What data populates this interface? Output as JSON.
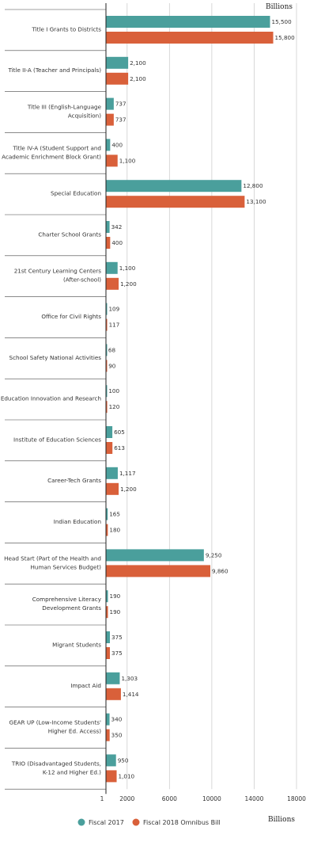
{
  "chart_data": {
    "type": "bar",
    "orientation": "horizontal",
    "unit_top": "Billions",
    "unit_bottom": "Billions",
    "categories": [
      [
        "Title I Grants to Districts"
      ],
      [
        "Title II-A (Teacher and Principals)"
      ],
      [
        "Title III (English-Language",
        "Acquisition)"
      ],
      [
        "Title IV-A (Student Support and",
        "Academic Enrichment Block Grant)"
      ],
      [
        "Special Education"
      ],
      [
        "Charter School Grants"
      ],
      [
        "21st Century Learning Centers",
        "(After-school)"
      ],
      [
        "Office for Civil Rights"
      ],
      [
        "School Safety National Activities"
      ],
      [
        "Education Innovation and Research"
      ],
      [
        "Institute of Education Sciences"
      ],
      [
        "Career-Tech Grants"
      ],
      [
        "Indian Education"
      ],
      [
        "Head Start (Part of the Health and",
        "Human Services Budget)"
      ],
      [
        "Comprehensive Literacy",
        "Development Grants"
      ],
      [
        "Migrant Students"
      ],
      [
        "Impact Aid"
      ],
      [
        "GEAR UP (Low-Income Students'",
        "Higher Ed. Access)"
      ],
      [
        "TRIO (Disadvantaged Students,",
        "K-12 and Higher Ed.)"
      ]
    ],
    "series": [
      {
        "name": "Fiscal 2017",
        "color": "#4a9f9c",
        "values": [
          15500,
          2100,
          737,
          400,
          12800,
          342,
          1100,
          109,
          68,
          100,
          605,
          1117,
          165,
          9250,
          190,
          375,
          1303,
          340,
          950
        ],
        "labels": [
          "15,500",
          "2,100",
          "737",
          "400",
          "12,800",
          "342",
          "1,100",
          "109",
          "68",
          "100",
          "605",
          "1,117",
          "165",
          "9,250",
          "190",
          "375",
          "1,303",
          "340",
          "950"
        ]
      },
      {
        "name": "Fiscal 2018 Omnibus Bill",
        "color": "#d9603a",
        "values": [
          15800,
          2100,
          737,
          1100,
          13100,
          400,
          1200,
          117,
          90,
          120,
          613,
          1200,
          180,
          9860,
          190,
          375,
          1414,
          350,
          1010
        ],
        "labels": [
          "15,800",
          "2,100",
          "737",
          "1,100",
          "13,100",
          "400",
          "1,200",
          "117",
          "90",
          "120",
          "613",
          "1,200",
          "180",
          "9,860",
          "190",
          "375",
          "1,414",
          "350",
          "1,010"
        ]
      }
    ],
    "xticks": [
      1,
      2000,
      6000,
      10000,
      14000,
      18000
    ],
    "xtick_labels": [
      "1",
      "2000",
      "6000",
      "10000",
      "14000",
      "18000"
    ],
    "xlim": [
      0,
      18000
    ],
    "grid": "vertical",
    "legend": "bottom"
  }
}
